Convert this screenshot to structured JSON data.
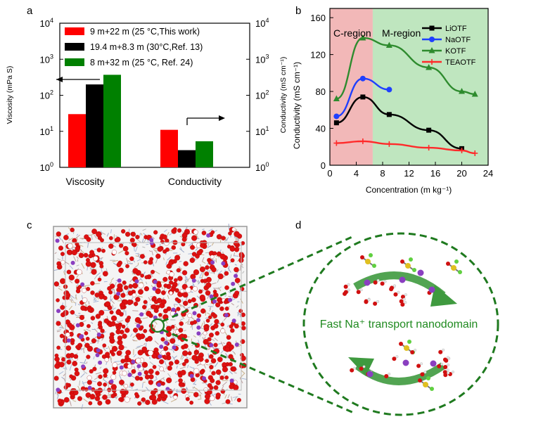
{
  "panel_labels": {
    "a": "a",
    "b": "b",
    "c": "c",
    "d": "d"
  },
  "chart_data": [
    {
      "type": "bar",
      "panel": "a",
      "yscale": "log",
      "categories": [
        "Viscosity",
        "Conductivity"
      ],
      "series": [
        {
          "name": "9 m+22 m (25 °C,This work)",
          "color": "#ff0000",
          "values": [
            30,
            11
          ]
        },
        {
          "name": "19.4 m+8.3 m (30°C,Ref. 13)",
          "color": "#000000",
          "values": [
            200,
            3
          ]
        },
        {
          "name": "8 m+32 m (25 °C, Ref. 24)",
          "color": "#008000",
          "values": [
            370,
            5.3
          ]
        }
      ],
      "ylabel_left": "Viscosity (mPa S)",
      "ylabel_right": "Conductivity (mS cm⁻¹)",
      "ylim": [
        1,
        10000
      ],
      "yticks": [
        {
          "base": "10",
          "exp": "0"
        },
        {
          "base": "10",
          "exp": "1"
        },
        {
          "base": "10",
          "exp": "2"
        },
        {
          "base": "10",
          "exp": "3"
        },
        {
          "base": "10",
          "exp": "4"
        }
      ]
    },
    {
      "type": "line",
      "panel": "b",
      "xlabel": "Concentration (m kg⁻¹)",
      "ylabel": "Conductivity (mS cm⁻¹)",
      "xlim": [
        0,
        24
      ],
      "ylim": [
        0,
        170
      ],
      "xticks": [
        0,
        4,
        8,
        12,
        16,
        20,
        24
      ],
      "yticks": [
        0,
        40,
        80,
        120,
        160
      ],
      "regions": [
        {
          "label": "C-region",
          "from": 0,
          "to": 6.5,
          "color": "#f2b8b8"
        },
        {
          "label": "M-region",
          "from": 6.5,
          "to": 24,
          "color": "#bfe6bf"
        }
      ],
      "series": [
        {
          "name": "LiOTF",
          "color": "#000000",
          "marker": "square",
          "x": [
            1,
            5,
            9,
            15,
            20
          ],
          "y": [
            46,
            74,
            55,
            38,
            18
          ]
        },
        {
          "name": "NaOTF",
          "color": "#1f3fff",
          "marker": "circle",
          "x": [
            1,
            5,
            9
          ],
          "y": [
            53,
            94,
            82
          ]
        },
        {
          "name": "KOTF",
          "color": "#2e8b2e",
          "marker": "triangle",
          "x": [
            1,
            5,
            9,
            15,
            20,
            22
          ],
          "y": [
            72,
            138,
            130,
            106,
            80,
            77
          ]
        },
        {
          "name": "TEAOTF",
          "color": "#ff2a2a",
          "marker": "star",
          "x": [
            1,
            5,
            9,
            15,
            20,
            22
          ],
          "y": [
            24,
            26,
            23,
            19,
            16,
            13
          ]
        }
      ]
    }
  ],
  "panel_d": {
    "caption": "Fast Na⁺ transport nanodomain"
  }
}
